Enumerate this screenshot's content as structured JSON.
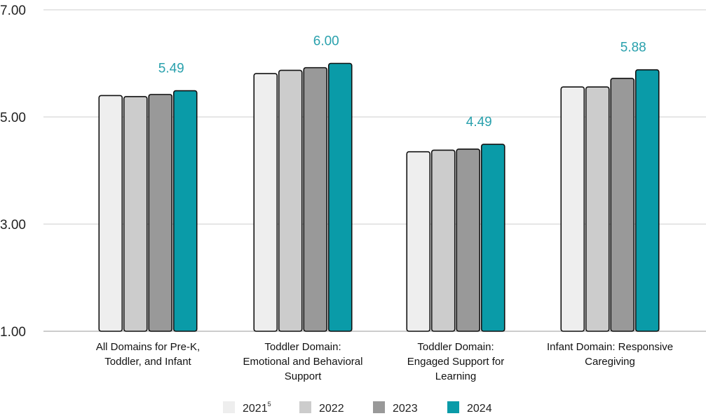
{
  "chart_data": {
    "type": "bar",
    "categories": [
      [
        "All Domains for Pre-K,",
        "Toddler, and Infant"
      ],
      [
        "Toddler Domain:",
        "Emotional and Behavioral",
        "Support"
      ],
      [
        "Toddler Domain:",
        "Engaged Support for",
        "Learning"
      ],
      [
        "Infant Domain: Responsive",
        "Caregiving"
      ]
    ],
    "series": [
      {
        "name": "2021",
        "name_superscript": "5",
        "color": "#eeeeee",
        "values": [
          5.4,
          5.81,
          4.35,
          5.56
        ]
      },
      {
        "name": "2022",
        "color": "#cccccc",
        "values": [
          5.38,
          5.87,
          4.38,
          5.56
        ]
      },
      {
        "name": "2023",
        "color": "#999999",
        "values": [
          5.42,
          5.92,
          4.4,
          5.72
        ]
      },
      {
        "name": "2024",
        "color": "#0a9ba8",
        "values": [
          5.49,
          6.0,
          4.49,
          5.88
        ]
      }
    ],
    "data_labels": {
      "series": "2024",
      "labels": [
        "5.49",
        "6.00",
        "4.49",
        "5.88"
      ],
      "color": "#2aa1ad"
    },
    "yticks": [
      "1.00",
      "3.00",
      "5.00",
      "7.00"
    ],
    "ylim": [
      1,
      7
    ],
    "grid": true,
    "legend_position": "bottom",
    "title": "",
    "xlabel": "",
    "ylabel": ""
  }
}
